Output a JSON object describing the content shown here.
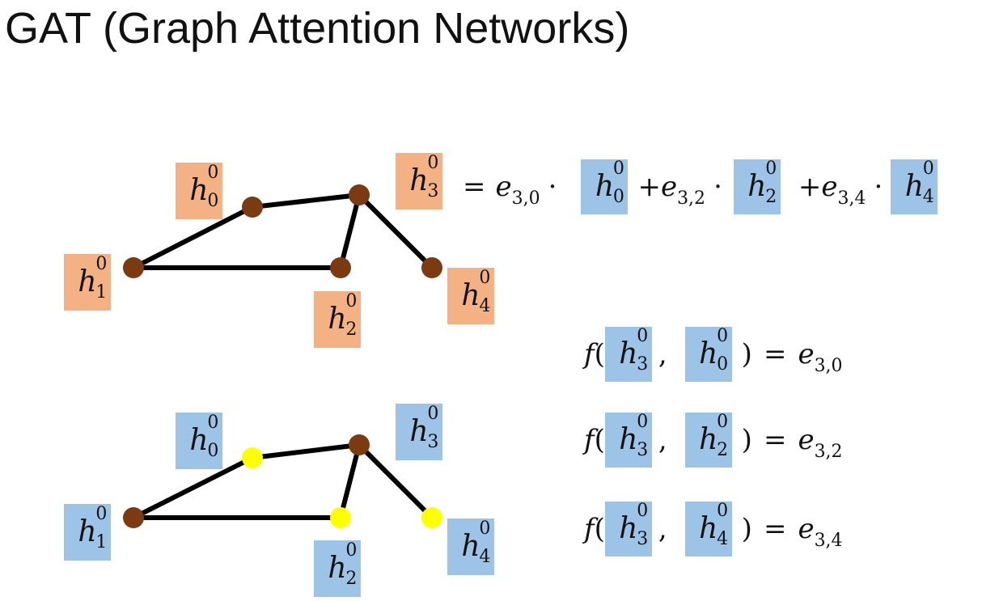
{
  "title": "GAT (Graph Attention Networks)",
  "colors": {
    "orange": "#f4b183",
    "blue": "#9dc3e6",
    "node_brown": "#7b3a10",
    "node_yellow": "#ffff00",
    "edge": "#000000"
  },
  "node_symbol": "h",
  "layer_index": "0",
  "top_graph": {
    "labels": [
      {
        "sub": "0"
      },
      {
        "sub": "1"
      },
      {
        "sub": "2"
      },
      {
        "sub": "3"
      },
      {
        "sub": "4"
      }
    ],
    "equation": {
      "lhs_sub": "3",
      "eq": "=",
      "terms": [
        {
          "coef": "e",
          "coef_sub": "3,0",
          "dot": "·",
          "plus": "",
          "h_sub": "0"
        },
        {
          "coef": "e",
          "coef_sub": "3,2",
          "dot": "·",
          "plus": "+",
          "h_sub": "2"
        },
        {
          "coef": "e",
          "coef_sub": "3,4",
          "dot": "·",
          "plus": "+",
          "h_sub": "4"
        }
      ]
    }
  },
  "bottom_graph": {
    "labels": [
      {
        "sub": "0"
      },
      {
        "sub": "1"
      },
      {
        "sub": "2"
      },
      {
        "sub": "3"
      },
      {
        "sub": "4"
      }
    ],
    "highlighted_nodes": [
      "0",
      "2",
      "4"
    ]
  },
  "attention": {
    "func": "f",
    "open": "(",
    "comma": ",",
    "close": ")",
    "eq": "=",
    "rows": [
      {
        "a_sub": "3",
        "b_sub": "0",
        "e": "e",
        "e_sub": "3,0"
      },
      {
        "a_sub": "3",
        "b_sub": "2",
        "e": "e",
        "e_sub": "3,2"
      },
      {
        "a_sub": "3",
        "b_sub": "4",
        "e": "e",
        "e_sub": "3,4"
      }
    ]
  }
}
